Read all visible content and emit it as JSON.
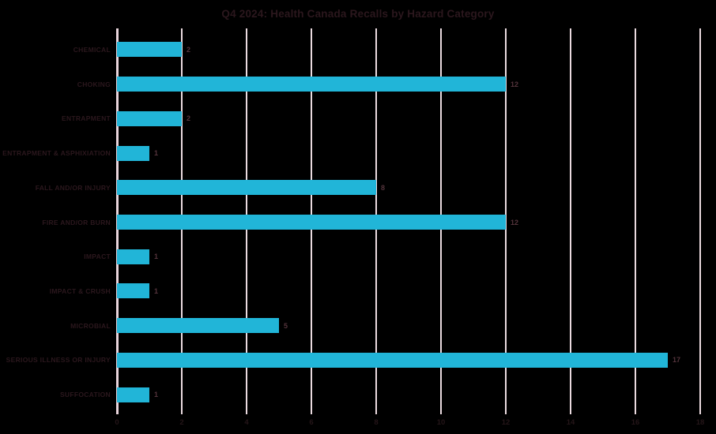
{
  "page": {
    "background": "#000000"
  },
  "chart_data": {
    "type": "bar",
    "orientation": "horizontal",
    "title": "Q4 2024: Health Canada Recalls by Hazard Category",
    "categories": [
      "CHEMICAL",
      "CHOKING",
      "ENTRAPMENT",
      "ENTRAPMENT & ASPHIXIATION",
      "FALL AND/OR INJURY",
      "FIRE AND/OR BURN",
      "IMPACT",
      "IMPACT & CRUSH",
      "MICROBIAL",
      "SERIOUS ILLNESS OR INJURY",
      "SUFFOCATION"
    ],
    "values": [
      2,
      12,
      2,
      1,
      8,
      12,
      1,
      1,
      5,
      17,
      1
    ],
    "value_labels": [
      "2",
      "12",
      "2",
      "1",
      "8",
      "12",
      "1",
      "1",
      "5",
      "17",
      "1"
    ],
    "xlabel": "",
    "ylabel": "",
    "xlim": [
      0,
      18
    ],
    "x_ticks": [
      0,
      2,
      4,
      6,
      8,
      10,
      12,
      14,
      16,
      18
    ],
    "grid": "vertical",
    "legend": "none",
    "colors": {
      "bar": "#21B5D8",
      "gridline": "#EADADF",
      "axis_line": "#E9D5DC",
      "title_text": "#2B171D",
      "category_text": "#2B171D",
      "tick_text": "#241518",
      "value_text": "#54343C",
      "background": "#000000"
    }
  }
}
